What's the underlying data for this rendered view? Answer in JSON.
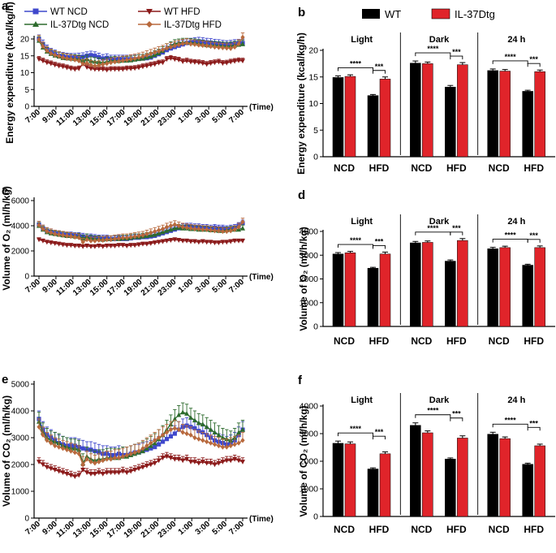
{
  "chart_data": [
    {
      "id": "a",
      "type": "line",
      "panel_label": "a",
      "ylabel": "Energy expenditure (kcal/kg/h)",
      "xlabel": "(Time)",
      "ylim": [
        0,
        20
      ],
      "yticks": [
        "0",
        "5",
        "10",
        "15",
        "20"
      ],
      "x_ticks": [
        "7:00",
        "9:00",
        "11:00",
        "13:00",
        "15:00",
        "17:00",
        "19:00",
        "21:00",
        "23:00",
        "1:00",
        "3:00",
        "5:00",
        "7:00"
      ],
      "series": [
        {
          "name": "WT NCD",
          "color": "#3f48cc",
          "marker": "square",
          "err": 1.2,
          "values": [
            20,
            18.5,
            17,
            16,
            15.5,
            15,
            14.8,
            14.6,
            14.5,
            14.5,
            14.6,
            14.7,
            15,
            15.2,
            15,
            14.6,
            14.2,
            14.4,
            14,
            14,
            14,
            14,
            14,
            14,
            14,
            14.1,
            14.2,
            14.3,
            14.5,
            15,
            15.5,
            16,
            16.7,
            17.2,
            17.6,
            18,
            18.4,
            18.8,
            19,
            19.2,
            19.3,
            19.2,
            19,
            18.9,
            18.7,
            18.6,
            18.4,
            18.3,
            18.4,
            18.6,
            18.7,
            18.8
          ]
        },
        {
          "name": "WT HFD",
          "color": "#8b1a1a",
          "marker": "triangle-down",
          "err": 0.8,
          "values": [
            14,
            13.5,
            13,
            12.7,
            12.3,
            12,
            11.8,
            11.5,
            11.2,
            11,
            11.2,
            12.6,
            11.6,
            11.2,
            11,
            11,
            11,
            10.8,
            11,
            11,
            11,
            11,
            11.2,
            11.2,
            11.3,
            11.5,
            11.8,
            12,
            12.3,
            12.5,
            12.9,
            13,
            14,
            14.3,
            14,
            13.8,
            13.3,
            13.5,
            13.2,
            13.1,
            13,
            12.8,
            12.5,
            12.8,
            13,
            13.2,
            12.8,
            12.9,
            13.2,
            13.4,
            13.6,
            13.5
          ]
        },
        {
          "name": "IL-37Dtg NCD",
          "color": "#2d6b2d",
          "marker": "triangle-up",
          "err": 1.2,
          "values": [
            19.5,
            17.5,
            16.3,
            15.6,
            15.1,
            14.8,
            14.4,
            14.3,
            14.2,
            14.1,
            14,
            13.6,
            14,
            13.5,
            13.3,
            13.2,
            13,
            13.3,
            13.5,
            13.6,
            13.5,
            13.6,
            13.6,
            13.7,
            13.9,
            14.1,
            14.2,
            14.5,
            14.8,
            15.3,
            15.8,
            16.5,
            17.4,
            18,
            18.6,
            18.8,
            19,
            19,
            18.9,
            18.8,
            18.6,
            18.4,
            18.2,
            18.1,
            18.1,
            18,
            17.9,
            17.8,
            17.9,
            18.1,
            18.3,
            18.5
          ]
        },
        {
          "name": "IL-37Dtg HFD",
          "color": "#b8693d",
          "marker": "diamond",
          "err": 1.3,
          "values": [
            19.8,
            17.8,
            16.5,
            15.7,
            15.2,
            14.9,
            14.5,
            14.2,
            14,
            13.8,
            13.5,
            12.6,
            12.8,
            12.3,
            12,
            12.2,
            12.5,
            12.7,
            13,
            13.2,
            13.4,
            13.6,
            13.8,
            14,
            14.2,
            14.5,
            14.8,
            15.2,
            15.6,
            16,
            16.4,
            16.8,
            17.3,
            17.6,
            18,
            18.3,
            18.6,
            18.8,
            18.5,
            18.4,
            18.2,
            18.1,
            18,
            17.8,
            17.6,
            17.5,
            17.4,
            17.3,
            17.2,
            17.6,
            18.5,
            20.5
          ]
        }
      ]
    },
    {
      "id": "b",
      "type": "bar",
      "panel_label": "b",
      "ylabel": "Energy expenditure (kcal/kg/h)",
      "ylim": [
        0,
        20
      ],
      "yticks": [
        "0",
        "5",
        "10",
        "15",
        "20"
      ],
      "conditions": [
        "Light",
        "Dark",
        "24 h"
      ],
      "groups": [
        "NCD",
        "HFD"
      ],
      "series": [
        {
          "name": "WT",
          "color": "#000000"
        },
        {
          "name": "IL-37Dtg",
          "color": "#e0242a"
        }
      ],
      "values": [
        [
          14.9,
          15.1,
          11.5,
          14.6
        ],
        [
          17.6,
          17.5,
          13.1,
          17.3
        ],
        [
          16.2,
          16.1,
          12.3,
          16.0
        ]
      ],
      "errors": [
        [
          0.3,
          0.3,
          0.2,
          0.4
        ],
        [
          0.4,
          0.3,
          0.3,
          0.4
        ],
        [
          0.3,
          0.3,
          0.2,
          0.3
        ]
      ],
      "significance": [
        [
          "****",
          "***"
        ],
        [
          "****",
          "***"
        ],
        [
          "****",
          "***"
        ]
      ]
    },
    {
      "id": "c",
      "type": "line",
      "panel_label": "c",
      "ylabel": "Volume of O₂ (ml/h/kg)",
      "xlabel": "(Time)",
      "ylim": [
        0,
        6000
      ],
      "yticks": [
        "0",
        "2000",
        "4000",
        "6000"
      ],
      "x_ticks": [
        "7:00",
        "9:00",
        "11:00",
        "13:00",
        "15:00",
        "17:00",
        "19:00",
        "21:00",
        "23:00",
        "1:00",
        "3:00",
        "5:00",
        "7:00"
      ],
      "series": [
        {
          "name": "WT NCD",
          "color": "#3f48cc",
          "marker": "square",
          "err": 250,
          "values": [
            4100,
            3800,
            3600,
            3500,
            3400,
            3350,
            3300,
            3250,
            3250,
            3200,
            3200,
            3150,
            3100,
            3100,
            3050,
            3000,
            3000,
            3000,
            2950,
            2950,
            3000,
            2950,
            2950,
            3000,
            3050,
            3050,
            3100,
            3100,
            3150,
            3200,
            3300,
            3400,
            3500,
            3600,
            3700,
            3800,
            3900,
            3950,
            3950,
            3900,
            3900,
            3850,
            3850,
            3800,
            3850,
            3800,
            3800,
            3750,
            3800,
            3850,
            4000,
            4200
          ]
        },
        {
          "name": "WT HFD",
          "color": "#8b1a1a",
          "marker": "triangle-down",
          "err": 150,
          "values": [
            2900,
            2800,
            2700,
            2650,
            2600,
            2550,
            2500,
            2450,
            2450,
            2400,
            2400,
            2350,
            2400,
            2350,
            2350,
            2400,
            2350,
            2400,
            2400,
            2400,
            2450,
            2450,
            2400,
            2450,
            2450,
            2500,
            2550,
            2550,
            2600,
            2650,
            2700,
            2750,
            2800,
            2850,
            2900,
            2850,
            2800,
            2800,
            2750,
            2750,
            2700,
            2750,
            2700,
            2700,
            2650,
            2650,
            2700,
            2700,
            2750,
            2800,
            2800,
            2800
          ]
        },
        {
          "name": "IL-37Dtg NCD",
          "color": "#2d6b2d",
          "marker": "triangle-up",
          "err": 250,
          "values": [
            4000,
            3700,
            3500,
            3400,
            3350,
            3300,
            3250,
            3200,
            3200,
            3150,
            3150,
            3000,
            3100,
            3000,
            2950,
            2950,
            2900,
            2950,
            2950,
            3000,
            2950,
            3000,
            3000,
            3050,
            3100,
            3100,
            3150,
            3200,
            3250,
            3300,
            3400,
            3500,
            3600,
            3700,
            3800,
            3850,
            3800,
            3800,
            3750,
            3750,
            3700,
            3700,
            3700,
            3650,
            3650,
            3600,
            3600,
            3650,
            3700,
            3700,
            3700,
            3800
          ]
        },
        {
          "name": "IL-37Dtg HFD",
          "color": "#b8693d",
          "marker": "diamond",
          "err": 300,
          "values": [
            4050,
            3750,
            3550,
            3450,
            3350,
            3300,
            3250,
            3200,
            3150,
            3100,
            3050,
            2700,
            2900,
            2800,
            2800,
            2850,
            2850,
            2900,
            2900,
            2950,
            3000,
            3050,
            3050,
            3100,
            3150,
            3200,
            3250,
            3350,
            3450,
            3550,
            3650,
            3750,
            3900,
            4000,
            4100,
            4000,
            3900,
            3850,
            3800,
            3750,
            3750,
            3700,
            3700,
            3650,
            3600,
            3600,
            3550,
            3550,
            3600,
            3700,
            3900,
            4300
          ]
        }
      ]
    },
    {
      "id": "d",
      "type": "bar",
      "panel_label": "d",
      "ylabel": "Volume of O₂ (ml/h/kg)",
      "ylim": [
        0,
        4000
      ],
      "yticks": [
        "0",
        "1000",
        "2000",
        "3000",
        "4000"
      ],
      "conditions": [
        "Light",
        "Dark",
        "24 h"
      ],
      "groups": [
        "NCD",
        "HFD"
      ],
      "series": [
        {
          "name": "WT",
          "color": "#000000"
        },
        {
          "name": "IL-37Dtg",
          "color": "#e0242a"
        }
      ],
      "values": [
        [
          3050,
          3100,
          2450,
          3050
        ],
        [
          3520,
          3540,
          2750,
          3620
        ],
        [
          3270,
          3320,
          2580,
          3320
        ]
      ],
      "errors": [
        [
          60,
          60,
          40,
          80
        ],
        [
          60,
          60,
          50,
          80
        ],
        [
          60,
          60,
          40,
          70
        ]
      ],
      "significance": [
        [
          "****",
          "***"
        ],
        [
          "****",
          "***"
        ],
        [
          "****",
          "***"
        ]
      ]
    },
    {
      "id": "e",
      "type": "line",
      "panel_label": "e",
      "ylabel": "Volume of CO₂ (ml/h/kg)",
      "xlabel": "(Time)",
      "ylim": [
        0,
        5000
      ],
      "yticks": [
        "0",
        "1000",
        "2000",
        "3000",
        "4000",
        "5000"
      ],
      "x_ticks": [
        "7:00",
        "9:00",
        "11:00",
        "13:00",
        "15:00",
        "17:00",
        "19:00",
        "21:00",
        "23:00",
        "1:00",
        "3:00",
        "5:00",
        "7:00"
      ],
      "series": [
        {
          "name": "WT NCD",
          "color": "#3f48cc",
          "marker": "square",
          "err": 300,
          "values": [
            3700,
            3300,
            3100,
            3000,
            2900,
            2800,
            2750,
            2700,
            2700,
            2700,
            2650,
            2600,
            2550,
            2550,
            2500,
            2450,
            2400,
            2400,
            2350,
            2350,
            2400,
            2350,
            2350,
            2400,
            2450,
            2450,
            2500,
            2550,
            2600,
            2650,
            2750,
            2850,
            2950,
            3050,
            3150,
            3300,
            3400,
            3450,
            3400,
            3350,
            3250,
            3200,
            3100,
            3000,
            2900,
            2850,
            2800,
            2750,
            2800,
            2900,
            3100,
            3300
          ]
        },
        {
          "name": "WT HFD",
          "color": "#8b1a1a",
          "marker": "triangle-down",
          "err": 150,
          "values": [
            2100,
            2000,
            1900,
            1850,
            1800,
            1750,
            1700,
            1650,
            1600,
            1550,
            1600,
            1800,
            1700,
            1650,
            1650,
            1700,
            1650,
            1700,
            1700,
            1700,
            1700,
            1750,
            1700,
            1750,
            1800,
            1850,
            1900,
            1950,
            2000,
            2050,
            2150,
            2250,
            2300,
            2250,
            2200,
            2200,
            2150,
            2200,
            2100,
            2100,
            2050,
            2100,
            2050,
            2050,
            2000,
            2050,
            2100,
            2150,
            2150,
            2200,
            2150,
            2100
          ]
        },
        {
          "name": "IL-37Dtg NCD",
          "color": "#2d6b2d",
          "marker": "triangle-up",
          "err": 350,
          "values": [
            3600,
            3200,
            3000,
            2900,
            2850,
            2800,
            2700,
            2650,
            2600,
            2600,
            2550,
            2050,
            2300,
            2200,
            2150,
            2200,
            2200,
            2250,
            2250,
            2250,
            2250,
            2300,
            2300,
            2350,
            2400,
            2450,
            2500,
            2600,
            2700,
            2800,
            2950,
            3100,
            3300,
            3500,
            3700,
            3850,
            3950,
            3900,
            3750,
            3650,
            3550,
            3500,
            3400,
            3300,
            3200,
            3100,
            3000,
            2950,
            2900,
            3000,
            3200,
            3300
          ]
        },
        {
          "name": "IL-37Dtg HFD",
          "color": "#b8693d",
          "marker": "diamond",
          "err": 300,
          "values": [
            3400,
            3100,
            2900,
            2800,
            2700,
            2650,
            2600,
            2550,
            2500,
            2450,
            2400,
            2000,
            2200,
            2100,
            2050,
            2100,
            2150,
            2200,
            2200,
            2250,
            2250,
            2300,
            2350,
            2400,
            2450,
            2500,
            2600,
            2700,
            2800,
            2900,
            3000,
            3100,
            3200,
            3300,
            3350,
            3300,
            3200,
            3150,
            3100,
            3000,
            2950,
            2900,
            2850,
            2800,
            2750,
            2700,
            2650,
            2650,
            2700,
            2750,
            2800,
            2900
          ]
        }
      ]
    },
    {
      "id": "f",
      "type": "bar",
      "panel_label": "f",
      "ylabel": "Volume of CO₂ (ml/h/kg)",
      "ylim": [
        0,
        4000
      ],
      "yticks": [
        "0",
        "1000",
        "2000",
        "3000",
        "4000"
      ],
      "conditions": [
        "Light",
        "Dark",
        "24 h"
      ],
      "groups": [
        "NCD",
        "HFD"
      ],
      "series": [
        {
          "name": "WT",
          "color": "#000000"
        },
        {
          "name": "IL-37Dtg",
          "color": "#e0242a"
        }
      ],
      "values": [
        [
          2650,
          2630,
          1720,
          2270
        ],
        [
          3300,
          3030,
          2080,
          2840
        ],
        [
          2980,
          2820,
          1890,
          2560
        ]
      ],
      "errors": [
        [
          80,
          70,
          40,
          70
        ],
        [
          90,
          70,
          40,
          80
        ],
        [
          70,
          60,
          40,
          60
        ]
      ],
      "significance": [
        [
          "****",
          "***"
        ],
        [
          "****",
          "***"
        ],
        [
          "****",
          "***"
        ]
      ]
    }
  ]
}
